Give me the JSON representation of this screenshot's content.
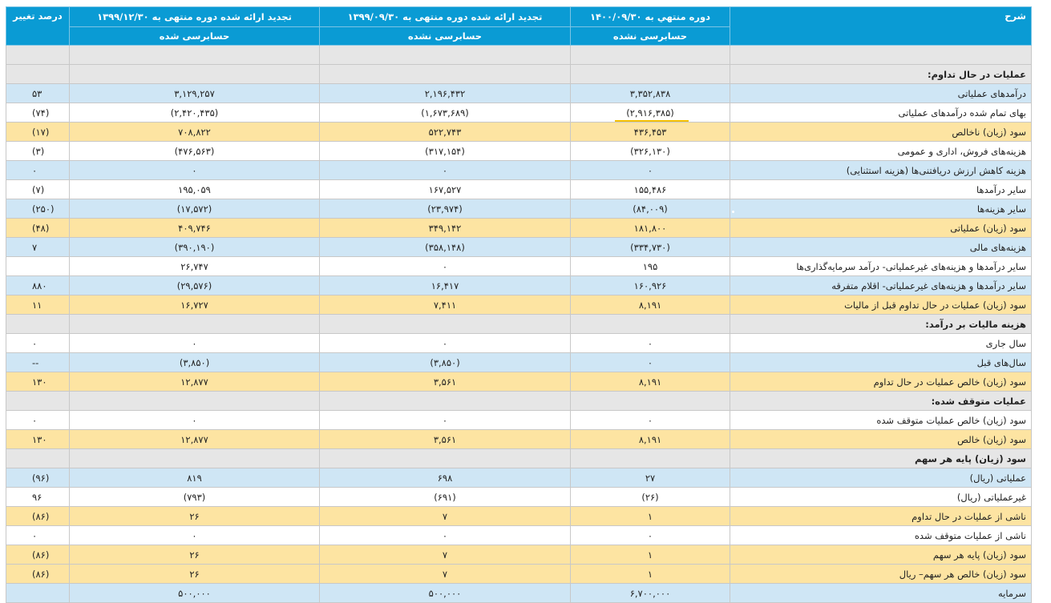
{
  "header": {
    "col_desc": "شرح",
    "col_1": "دوره منتهي به ۱۴۰۰/۰۹/۳۰",
    "col_1_sub": "حسابرسی نشده",
    "col_2": "تجدید ارائه شده دوره منتهی به ۱۳۹۹/۰۹/۳۰",
    "col_2_sub": "حسابرسی نشده",
    "col_3": "تجدید ارائه شده دوره منتهی به ۱۳۹۹/۱۲/۳۰",
    "col_3_sub": "حسابرسی شده",
    "col_pct": "درصد تغییر"
  },
  "rows": [
    {
      "label": "",
      "v1": "",
      "v2": "",
      "v3": "",
      "pct": "",
      "tone": "grey"
    },
    {
      "label": "عملیات در حال تداوم:",
      "v1": "",
      "v2": "",
      "v3": "",
      "pct": "",
      "tone": "grey"
    },
    {
      "label": "درآمدهای عملیاتی",
      "v1": "۳,۳۵۲,۸۳۸",
      "v2": "۲,۱۹۶,۴۳۲",
      "v3": "۳,۱۲۹,۲۵۷",
      "pct": "۵۳",
      "tone": "blue"
    },
    {
      "label": "بهای تمام شده درآمدهای عملیاتی",
      "v1": "(۲,۹۱۶,۳۸۵)",
      "v2": "(۱,۶۷۳,۶۸۹)",
      "v3": "(۲,۴۲۰,۴۳۵)",
      "pct": "(۷۴)",
      "tone": "white"
    },
    {
      "label": "سود (زیان) ناخالص",
      "v1": "۴۳۶,۴۵۳",
      "v2": "۵۲۲,۷۴۳",
      "v3": "۷۰۸,۸۲۲",
      "pct": "(۱۷)",
      "tone": "yellow"
    },
    {
      "label": "هزینه‌های فروش، اداری و عمومی",
      "v1": "(۳۲۶,۱۳۰)",
      "v2": "(۳۱۷,۱۵۴)",
      "v3": "(۴۷۶,۵۶۳)",
      "pct": "(۳)",
      "tone": "white"
    },
    {
      "label": "هزینه کاهش ارزش دریافتنی‌ها (هزینه استثنایی)",
      "v1": "۰",
      "v2": "۰",
      "v3": "۰",
      "pct": "۰",
      "tone": "blue"
    },
    {
      "label": "سایر درآمدها",
      "v1": "۱۵۵,۴۸۶",
      "v2": "۱۶۷,۵۲۷",
      "v3": "۱۹۵,۰۵۹",
      "pct": "(۷)",
      "tone": "white"
    },
    {
      "label": "سایر هزینه‌ها",
      "v1": "(۸۴,۰۰۹)",
      "v2": "(۲۳,۹۷۴)",
      "v3": "(۱۷,۵۷۲)",
      "pct": "(۲۵۰)",
      "tone": "blue"
    },
    {
      "label": "سود (زیان) عملیاتی",
      "v1": "۱۸۱,۸۰۰",
      "v2": "۳۴۹,۱۴۲",
      "v3": "۴۰۹,۷۴۶",
      "pct": "(۴۸)",
      "tone": "yellow"
    },
    {
      "label": "هزینه‌های مالی",
      "v1": "(۳۳۴,۷۳۰)",
      "v2": "(۳۵۸,۱۴۸)",
      "v3": "(۳۹۰,۱۹۰)",
      "pct": "۷",
      "tone": "blue"
    },
    {
      "label": "سایر درآمدها و هزینه‌های غیرعملیاتی- درآمد سرمایه‌گذاری‌ها",
      "v1": "۱۹۵",
      "v2": "۰",
      "v3": "۲۶,۷۴۷",
      "pct": "",
      "tone": "white"
    },
    {
      "label": "سایر درآمدها و هزینه‌های غیرعملیاتی- اقلام متفرقه",
      "v1": "۱۶۰,۹۲۶",
      "v2": "۱۶,۴۱۷",
      "v3": "(۲۹,۵۷۶)",
      "pct": "۸۸۰",
      "tone": "blue"
    },
    {
      "label": "سود (زیان) عملیات در حال تداوم قبل از مالیات",
      "v1": "۸,۱۹۱",
      "v2": "۷,۴۱۱",
      "v3": "۱۶,۷۲۷",
      "pct": "۱۱",
      "tone": "yellow"
    },
    {
      "label": "هزینه مالیات بر درآمد:",
      "v1": "",
      "v2": "",
      "v3": "",
      "pct": "",
      "tone": "grey"
    },
    {
      "label": "سال جاری",
      "v1": "۰",
      "v2": "۰",
      "v3": "۰",
      "pct": "۰",
      "tone": "white"
    },
    {
      "label": "سال‌های قبل",
      "v1": "۰",
      "v2": "(۳,۸۵۰)",
      "v3": "(۳,۸۵۰)",
      "pct": "--",
      "tone": "blue"
    },
    {
      "label": "سود (زیان) خالص عملیات در حال تداوم",
      "v1": "۸,۱۹۱",
      "v2": "۳,۵۶۱",
      "v3": "۱۲,۸۷۷",
      "pct": "۱۳۰",
      "tone": "yellow"
    },
    {
      "label": "عملیات متوقف شده:",
      "v1": "",
      "v2": "",
      "v3": "",
      "pct": "",
      "tone": "grey"
    },
    {
      "label": "سود (زیان) خالص عملیات متوقف شده",
      "v1": "۰",
      "v2": "۰",
      "v3": "۰",
      "pct": "۰",
      "tone": "white"
    },
    {
      "label": "سود (زیان) خالص",
      "v1": "۸,۱۹۱",
      "v2": "۳,۵۶۱",
      "v3": "۱۲,۸۷۷",
      "pct": "۱۳۰",
      "tone": "yellow"
    },
    {
      "label": "سود (زیان) پایه هر سهم",
      "v1": "",
      "v2": "",
      "v3": "",
      "pct": "",
      "tone": "grey"
    },
    {
      "label": "عملیاتی (ریال)",
      "v1": "۲۷",
      "v2": "۶۹۸",
      "v3": "۸۱۹",
      "pct": "(۹۶)",
      "tone": "blue"
    },
    {
      "label": "غیرعملیاتی (ریال)",
      "v1": "(۲۶)",
      "v2": "(۶۹۱)",
      "v3": "(۷۹۳)",
      "pct": "۹۶",
      "tone": "white"
    },
    {
      "label": "ناشی از عملیات در حال تداوم",
      "v1": "۱",
      "v2": "۷",
      "v3": "۲۶",
      "pct": "(۸۶)",
      "tone": "yellow"
    },
    {
      "label": "ناشی از عملیات متوقف شده",
      "v1": "۰",
      "v2": "۰",
      "v3": "۰",
      "pct": "۰",
      "tone": "white"
    },
    {
      "label": "سود (زیان) پایه هر سهم",
      "v1": "۱",
      "v2": "۷",
      "v3": "۲۶",
      "pct": "(۸۶)",
      "tone": "yellow"
    },
    {
      "label": "سود (زیان) خالص هر سهم– ریال",
      "v1": "۱",
      "v2": "۷",
      "v3": "۲۶",
      "pct": "(۸۶)",
      "tone": "yellow"
    },
    {
      "label": "سرمایه",
      "v1": "۶,۷۰۰,۰۰۰",
      "v2": "۵۰۰,۰۰۰",
      "v3": "۵۰۰,۰۰۰",
      "pct": "",
      "tone": "blue"
    }
  ]
}
